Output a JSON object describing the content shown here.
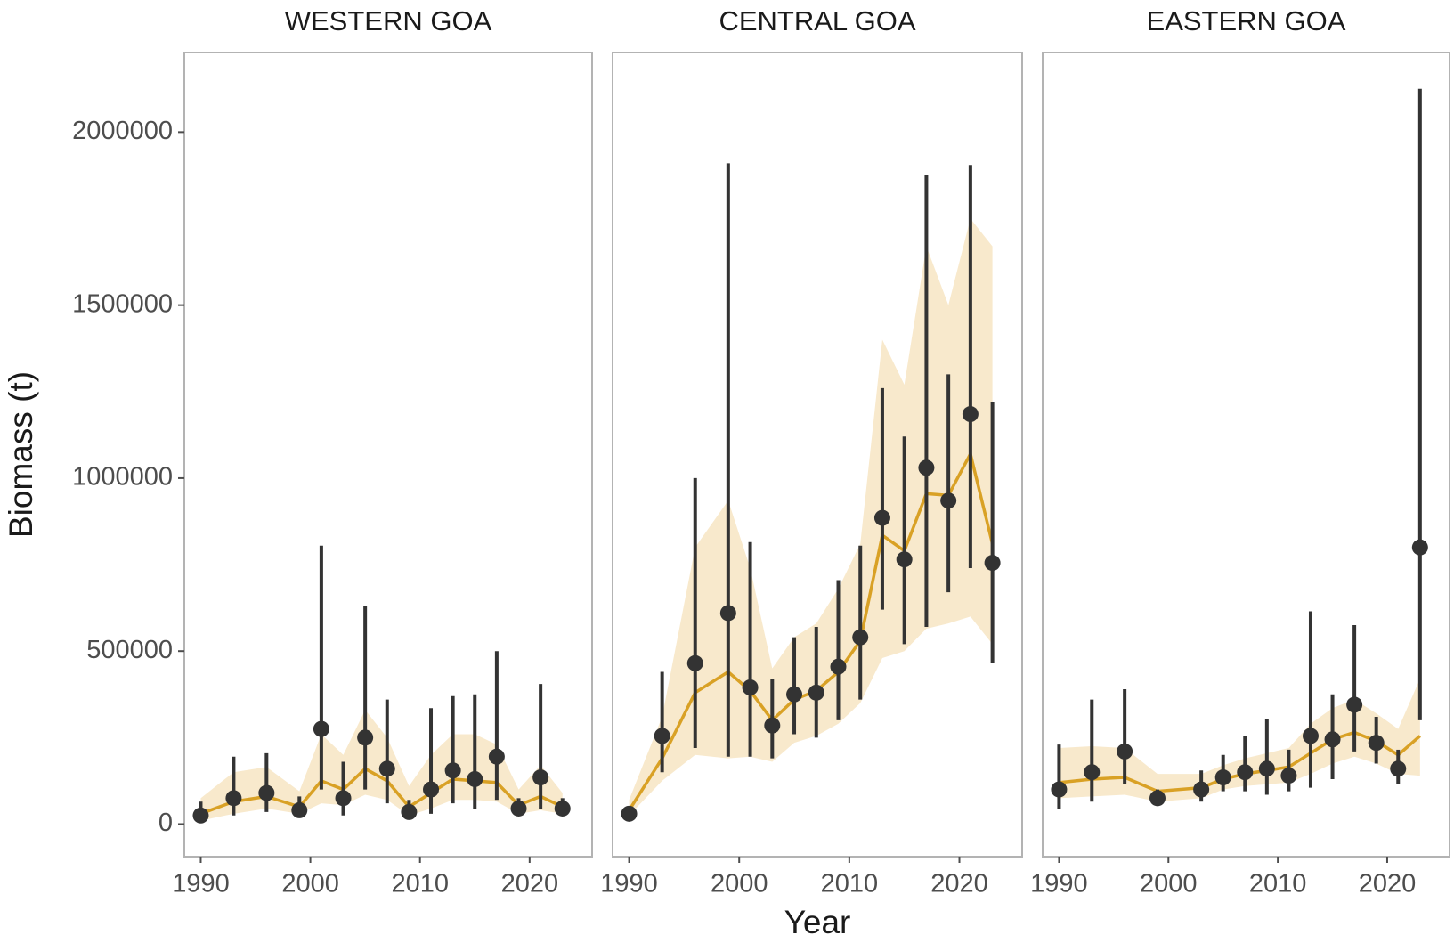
{
  "chart_data": [
    {
      "type": "errorbar",
      "title": "WESTERN GOA",
      "y_label": "Biomass (t)",
      "x": [
        1990,
        1993,
        1996,
        1999,
        2001,
        2003,
        2005,
        2007,
        2009,
        2011,
        2013,
        2015,
        2017,
        2019,
        2021,
        2023
      ],
      "observed": [
        25000,
        75000,
        90000,
        40000,
        275000,
        75000,
        250000,
        160000,
        35000,
        100000,
        155000,
        130000,
        195000,
        45000,
        135000,
        45000
      ],
      "error_low": [
        10000,
        25000,
        35000,
        20000,
        100000,
        25000,
        100000,
        60000,
        15000,
        30000,
        60000,
        45000,
        70000,
        25000,
        45000,
        25000
      ],
      "error_high": [
        65000,
        195000,
        205000,
        80000,
        805000,
        180000,
        630000,
        360000,
        70000,
        335000,
        370000,
        375000,
        500000,
        75000,
        405000,
        75000
      ],
      "fit": [
        30000,
        65000,
        80000,
        50000,
        125000,
        100000,
        160000,
        125000,
        50000,
        90000,
        130000,
        125000,
        120000,
        55000,
        80000,
        50000
      ],
      "fit_low": [
        10000,
        30000,
        45000,
        30000,
        60000,
        55000,
        85000,
        70000,
        25000,
        45000,
        70000,
        70000,
        65000,
        30000,
        40000,
        30000
      ],
      "fit_high": [
        75000,
        150000,
        165000,
        95000,
        260000,
        200000,
        330000,
        250000,
        110000,
        200000,
        260000,
        260000,
        230000,
        100000,
        170000,
        90000
      ],
      "point_color": "#333333",
      "line_color": "#d9a125",
      "band_color": "#f8e9cc",
      "xlim": [
        1988.5,
        2025.7
      ],
      "xticks": [
        1990,
        2000,
        2010,
        2020
      ],
      "ylim": [
        -94000,
        2230000
      ],
      "yticks": [
        0,
        500000,
        1000000,
        1500000,
        2000000
      ]
    },
    {
      "type": "errorbar",
      "title": "CENTRAL GOA",
      "x_label": "Year",
      "x": [
        1990,
        1993,
        1996,
        1999,
        2001,
        2003,
        2005,
        2007,
        2009,
        2011,
        2013,
        2015,
        2017,
        2019,
        2021,
        2023
      ],
      "observed": [
        30000,
        255000,
        465000,
        610000,
        395000,
        285000,
        375000,
        380000,
        455000,
        540000,
        885000,
        765000,
        1030000,
        935000,
        1185000,
        755000
      ],
      "error_low": [
        20000,
        150000,
        220000,
        195000,
        195000,
        190000,
        260000,
        250000,
        300000,
        360000,
        620000,
        520000,
        570000,
        670000,
        740000,
        465000
      ],
      "error_high": [
        45000,
        440000,
        1000000,
        1910000,
        815000,
        420000,
        540000,
        570000,
        705000,
        805000,
        1260000,
        1120000,
        1875000,
        1300000,
        1905000,
        1220000
      ],
      "fit": [
        40000,
        190000,
        380000,
        440000,
        385000,
        300000,
        360000,
        385000,
        440000,
        530000,
        835000,
        790000,
        955000,
        950000,
        1070000,
        810000
      ],
      "fit_low": [
        25000,
        125000,
        200000,
        190000,
        195000,
        180000,
        235000,
        255000,
        290000,
        350000,
        480000,
        500000,
        565000,
        580000,
        600000,
        520000
      ],
      "fit_high": [
        70000,
        310000,
        800000,
        935000,
        740000,
        450000,
        540000,
        580000,
        680000,
        810000,
        1400000,
        1270000,
        1670000,
        1500000,
        1750000,
        1670000
      ],
      "point_color": "#333333",
      "line_color": "#d9a125",
      "band_color": "#f8e9cc",
      "xlim": [
        1988.5,
        2025.7
      ],
      "xticks": [
        1990,
        2000,
        2010,
        2020
      ],
      "ylim": [
        -94000,
        2230000
      ]
    },
    {
      "type": "errorbar",
      "title": "EASTERN GOA",
      "x": [
        1990,
        1993,
        1996,
        1999,
        2003,
        2005,
        2007,
        2009,
        2011,
        2013,
        2015,
        2017,
        2019,
        2021,
        2023
      ],
      "observed": [
        100000,
        150000,
        210000,
        75000,
        100000,
        135000,
        150000,
        160000,
        140000,
        255000,
        245000,
        345000,
        235000,
        160000,
        800000
      ],
      "error_low": [
        45000,
        65000,
        115000,
        55000,
        65000,
        95000,
        95000,
        85000,
        95000,
        105000,
        130000,
        210000,
        175000,
        115000,
        300000
      ],
      "error_high": [
        230000,
        360000,
        390000,
        100000,
        155000,
        200000,
        255000,
        305000,
        215000,
        615000,
        375000,
        575000,
        310000,
        215000,
        2125000
      ],
      "fit": [
        120000,
        130000,
        135000,
        95000,
        105000,
        130000,
        145000,
        155000,
        165000,
        205000,
        245000,
        265000,
        240000,
        200000,
        255000
      ],
      "fit_low": [
        75000,
        80000,
        85000,
        65000,
        75000,
        100000,
        110000,
        115000,
        120000,
        145000,
        175000,
        195000,
        175000,
        145000,
        140000
      ],
      "fit_high": [
        220000,
        225000,
        220000,
        145000,
        145000,
        170000,
        190000,
        205000,
        220000,
        290000,
        335000,
        360000,
        320000,
        275000,
        420000
      ],
      "point_color": "#333333",
      "line_color": "#d9a125",
      "band_color": "#f8e9cc",
      "xlim": [
        1988.5,
        2025.7
      ],
      "xticks": [
        1990,
        2000,
        2010,
        2020
      ],
      "ylim": [
        -94000,
        2230000
      ]
    }
  ]
}
